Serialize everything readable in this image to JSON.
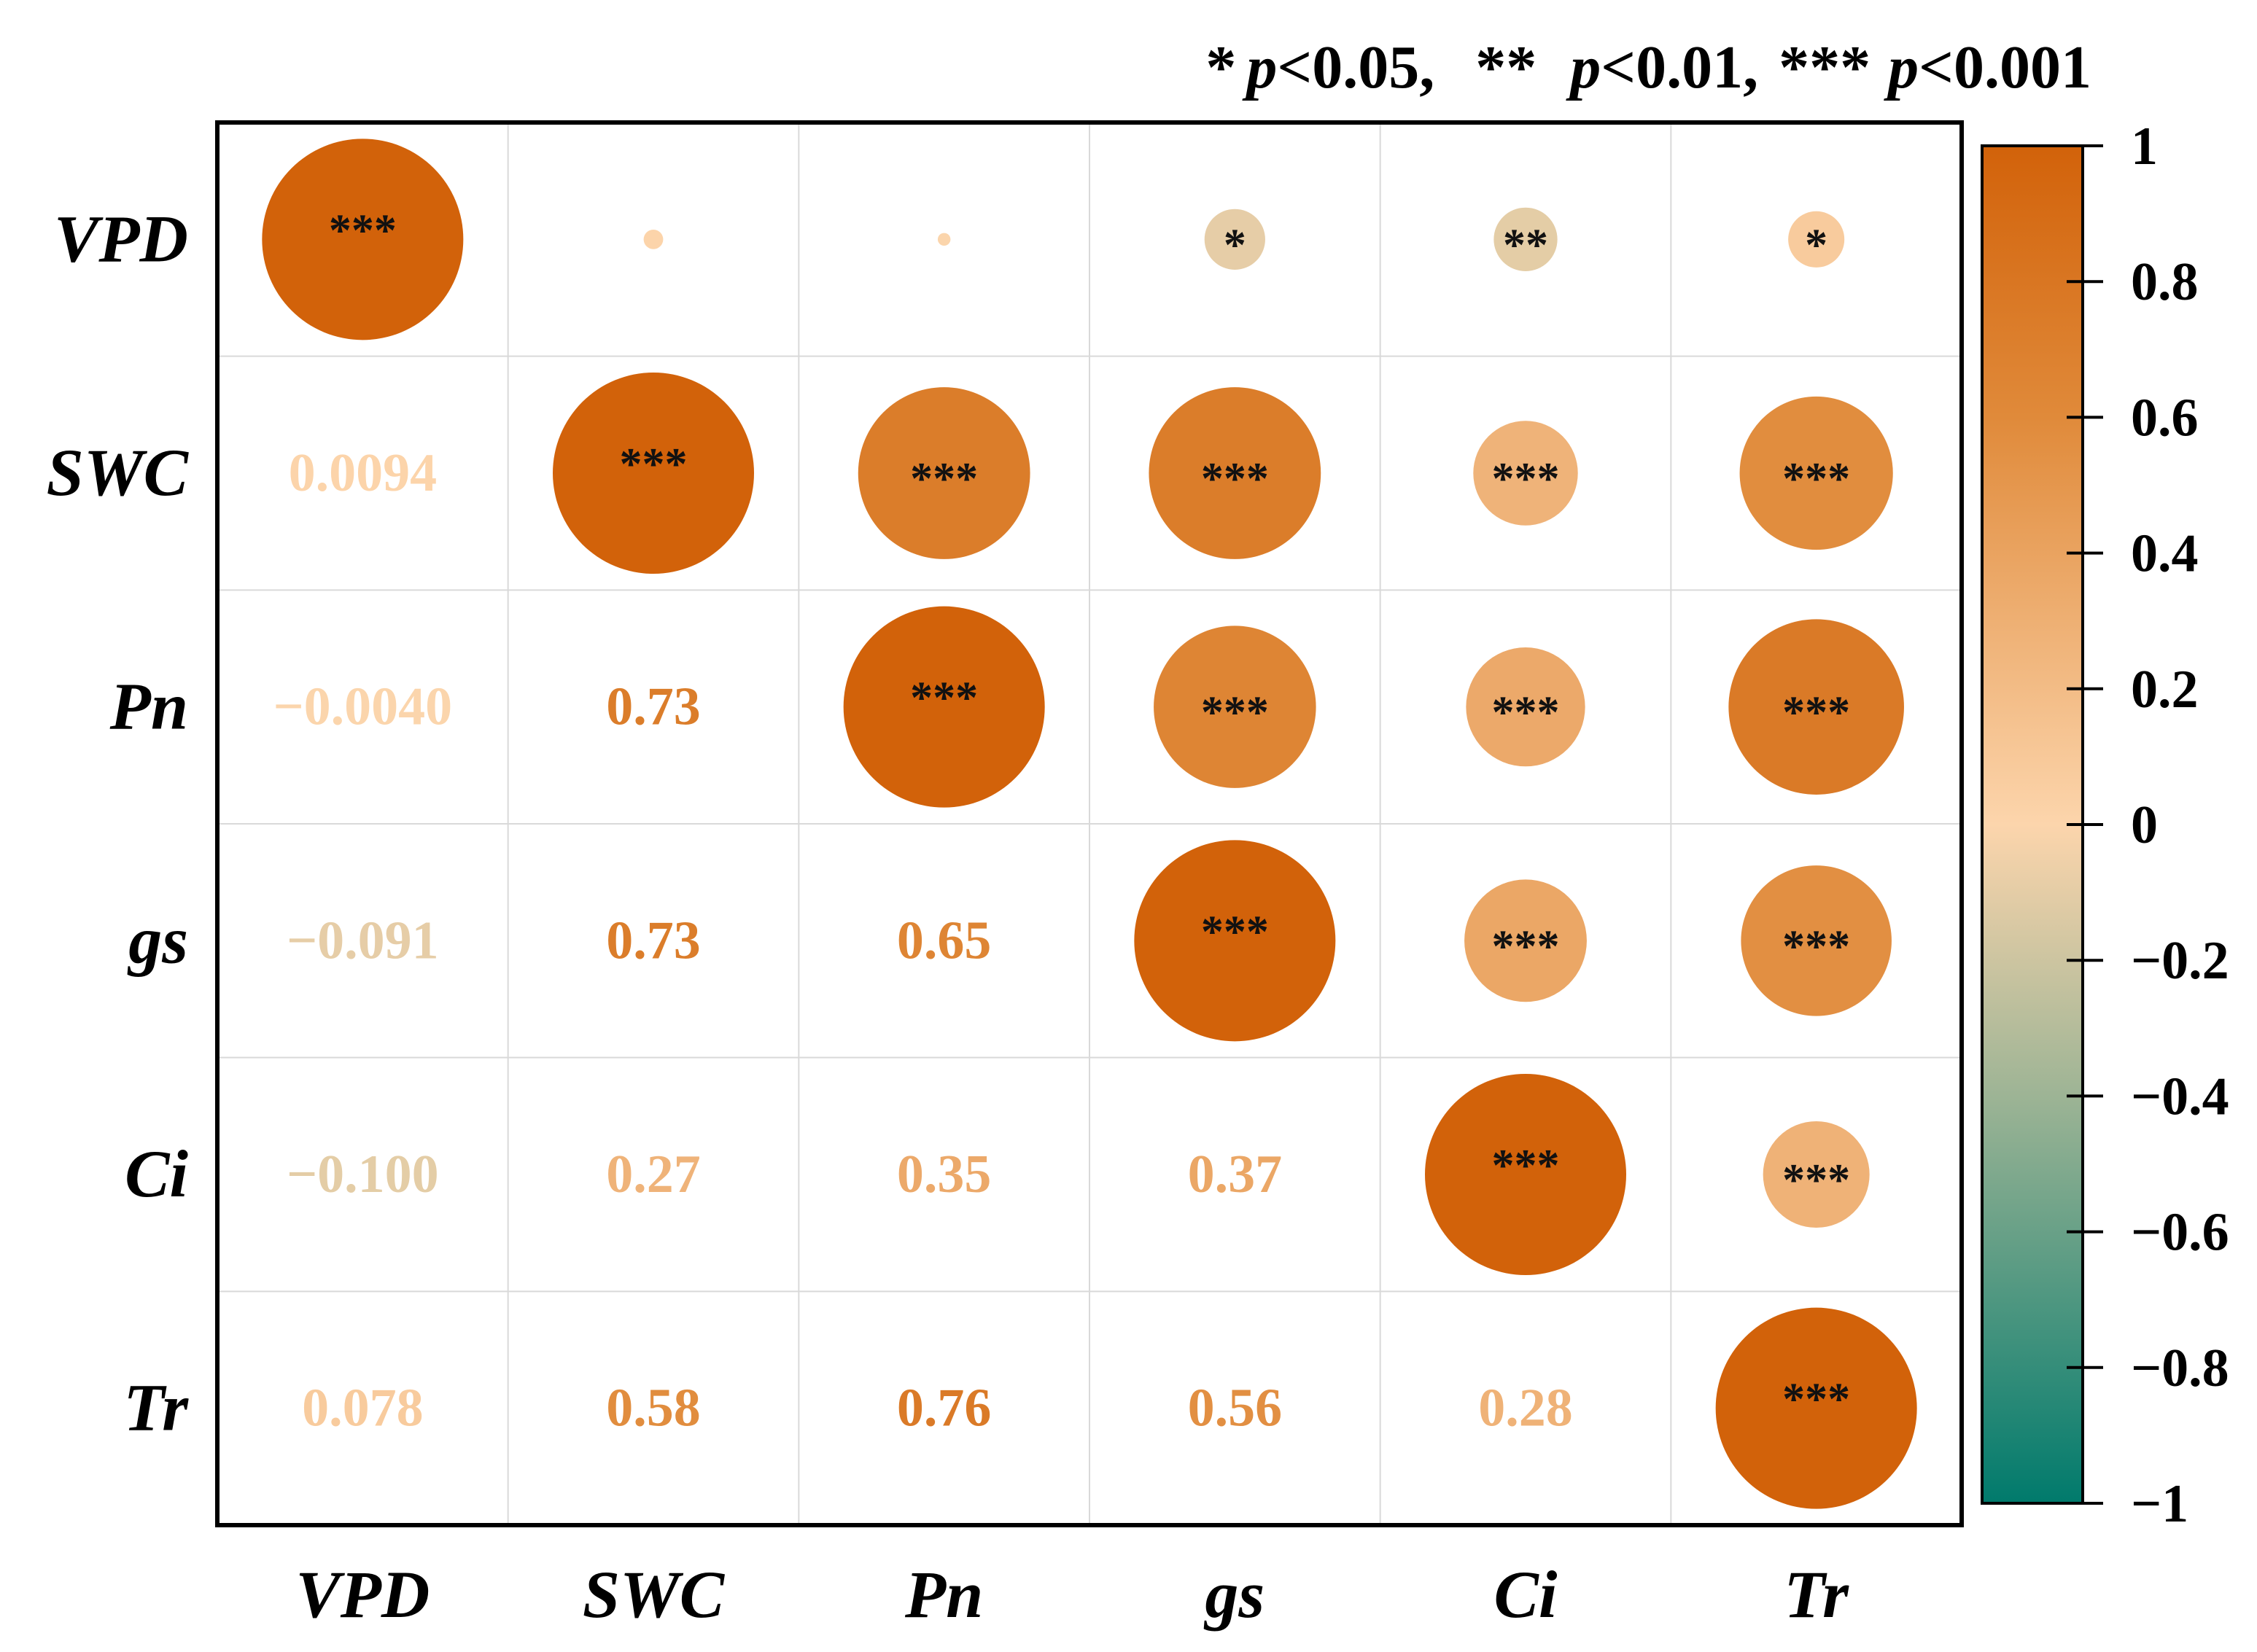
{
  "chart_data": {
    "type": "heatmap",
    "subtype": "correlation-matrix",
    "title": "",
    "significance_legend": {
      "s1": "*",
      "t1": "p",
      "r1": "<0.05,",
      "s2": "**",
      "t2": "p",
      "r2": "<0.01,",
      "s3": "***",
      "t3": "p",
      "r3": "<0.001"
    },
    "variables": [
      "VPD",
      "SWC",
      "Pn",
      "gs",
      "Ci",
      "Tr"
    ],
    "matrix": [
      [
        1,
        0.0094,
        -0.004,
        -0.091,
        -0.1,
        0.078
      ],
      [
        0.0094,
        1,
        0.73,
        0.73,
        0.27,
        0.58
      ],
      [
        -0.004,
        0.73,
        1,
        0.65,
        0.35,
        0.76
      ],
      [
        -0.091,
        0.73,
        0.65,
        1,
        0.37,
        0.56
      ],
      [
        -0.1,
        0.27,
        0.35,
        0.37,
        1,
        0.28
      ],
      [
        0.078,
        0.58,
        0.76,
        0.56,
        0.28,
        1
      ]
    ],
    "lower_labels": [
      [
        "",
        "",
        "",
        "",
        "",
        ""
      ],
      [
        "0.0094",
        "",
        "",
        "",
        "",
        ""
      ],
      [
        "−0.0040",
        "0.73",
        "",
        "",
        "",
        ""
      ],
      [
        "−0.091",
        "0.73",
        "0.65",
        "",
        "",
        ""
      ],
      [
        "−0.100",
        "0.27",
        "0.35",
        "0.37",
        "",
        ""
      ],
      [
        "0.078",
        "0.58",
        "0.76",
        "0.56",
        "0.28",
        ""
      ]
    ],
    "significance": [
      [
        "***",
        "",
        "",
        "*",
        "**",
        "*"
      ],
      [
        "",
        "***",
        "***",
        "***",
        "***",
        "***"
      ],
      [
        "",
        "",
        "***",
        "***",
        "***",
        "***"
      ],
      [
        "",
        "",
        "",
        "***",
        "***",
        "***"
      ],
      [
        "",
        "",
        "",
        "",
        "***",
        "***"
      ],
      [
        "",
        "",
        "",
        "",
        "",
        "***"
      ]
    ],
    "upper_display": "circle",
    "lower_display": "number",
    "colorbar": {
      "range": [
        -1,
        1
      ],
      "ticks": [
        1,
        0.8,
        0.6,
        0.4,
        0.2,
        0,
        -0.2,
        -0.4,
        -0.6,
        -0.8,
        -1
      ],
      "tick_labels": [
        "1",
        "0.8",
        "0.6",
        "0.4",
        "0.2",
        "0",
        "−0.2",
        "−0.4",
        "−0.6",
        "−0.8",
        "−1"
      ],
      "colors": [
        {
          "value": -1,
          "color": "#007a6c"
        },
        {
          "value": -0.4,
          "color": "#9db495"
        },
        {
          "value": 0,
          "color": "#fcd5ac"
        },
        {
          "value": 0.6,
          "color": "#e08a3a"
        },
        {
          "value": 1,
          "color": "#d2620a"
        }
      ]
    },
    "legend_placement": "top-right",
    "grid": true
  }
}
